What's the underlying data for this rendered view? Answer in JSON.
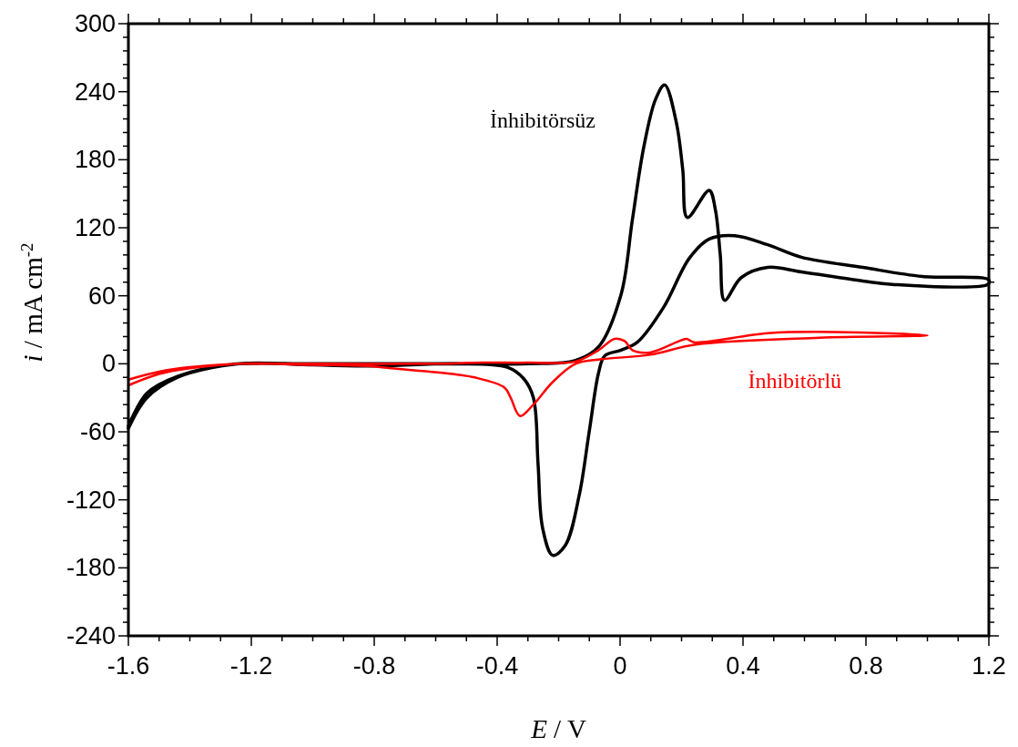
{
  "chart_data": {
    "type": "line",
    "xlabel": "E / V",
    "ylabel": "i / mA cm$^{-2}$",
    "xlim": [
      -1.6,
      1.2
    ],
    "xticks": [
      -1.6,
      {
        "value": -1.5,
        "label": null
      },
      {
        "value": -1.4,
        "label": null
      },
      {
        "value": -1.3,
        "label": null
      },
      -1.2,
      {
        "value": -1.1,
        "label": null
      },
      {
        "value": -1.0,
        "label": null
      },
      {
        "value": -0.9,
        "label": null
      },
      -0.8,
      {
        "value": -0.7,
        "label": null
      },
      {
        "value": -0.6,
        "label": null
      },
      {
        "value": -0.5,
        "label": null
      },
      -0.4,
      {
        "value": -0.3,
        "label": null
      },
      {
        "value": -0.2,
        "label": null
      },
      {
        "value": -0.1,
        "label": null
      },
      0,
      {
        "value": 0.1,
        "label": null
      },
      {
        "value": 0.2,
        "label": null
      },
      {
        "value": 0.3,
        "label": null
      },
      0.4,
      {
        "value": 0.5,
        "label": null
      },
      {
        "value": 0.6,
        "label": null
      },
      {
        "value": 0.7,
        "label": null
      },
      0.8,
      {
        "value": 0.9,
        "label": null
      },
      {
        "value": 1.0,
        "label": null
      },
      {
        "value": 1.1,
        "label": null
      },
      1.2
    ],
    "ylim": [
      -240,
      300
    ],
    "yticks": [
      -240,
      {
        "value": -228,
        "label": null
      },
      {
        "value": -216,
        "label": null
      },
      {
        "value": -204,
        "label": null
      },
      {
        "value": -192,
        "label": null
      },
      -180,
      {
        "value": -168,
        "label": null
      },
      {
        "value": -156,
        "label": null
      },
      {
        "value": -144,
        "label": null
      },
      {
        "value": -132,
        "label": null
      },
      -120,
      {
        "value": -108,
        "label": null
      },
      {
        "value": -96,
        "label": null
      },
      {
        "value": -84,
        "label": null
      },
      {
        "value": -72,
        "label": null
      },
      -60,
      {
        "value": -48,
        "label": null
      },
      {
        "value": -36,
        "label": null
      },
      {
        "value": -24,
        "label": null
      },
      {
        "value": -12,
        "label": null
      },
      0,
      {
        "value": 12,
        "label": null
      },
      {
        "value": 24,
        "label": null
      },
      {
        "value": 36,
        "label": null
      },
      {
        "value": 48,
        "label": null
      },
      60,
      {
        "value": 72,
        "label": null
      },
      {
        "value": 84,
        "label": null
      },
      {
        "value": 96,
        "label": null
      },
      {
        "value": 108,
        "label": null
      },
      120,
      {
        "value": 132,
        "label": null
      },
      {
        "value": 144,
        "label": null
      },
      {
        "value": 156,
        "label": null
      },
      {
        "value": 168,
        "label": null
      },
      180,
      {
        "value": 192,
        "label": null
      },
      {
        "value": 204,
        "label": null
      },
      {
        "value": 216,
        "label": null
      },
      {
        "value": 228,
        "label": null
      },
      240,
      {
        "value": 252,
        "label": null
      },
      {
        "value": 264,
        "label": null
      },
      {
        "value": 276,
        "label": null
      },
      {
        "value": 288,
        "label": null
      },
      300
    ],
    "grid": false,
    "marker": "none",
    "line_style": "solid",
    "series": [
      {
        "name": "İnhibitörsüz",
        "color": "#000000",
        "x": [
          -1.6,
          -1.54,
          -1.44,
          -1.32,
          -1.24,
          -1.0,
          -0.6,
          -0.3,
          -0.145,
          -0.07,
          0.003,
          0.04,
          0.077,
          0.115,
          0.145,
          0.183,
          0.204,
          0.219,
          0.29,
          0.31,
          0.326,
          0.34,
          0.394,
          0.48,
          0.59,
          0.79,
          0.886,
          1.197,
          1.2,
          0.984,
          0.79,
          0.59,
          0.48,
          0.373,
          0.29,
          0.225,
          0.142,
          0.056,
          0.003,
          -0.05,
          -0.07,
          -0.1,
          -0.133,
          -0.178,
          -0.219,
          -0.252,
          -0.267,
          -0.282,
          -0.314,
          -0.367,
          -0.536,
          -0.8,
          -1.0,
          -1.24,
          -1.44,
          -1.54,
          -1.6
        ],
        "values": [
          -57,
          -30,
          -12,
          -3,
          0,
          0,
          0,
          0,
          3,
          15,
          61,
          127,
          191,
          233,
          246,
          213,
          171,
          129,
          153,
          136,
          96,
          56,
          76,
          85,
          81,
          73,
          70,
          70,
          74,
          77,
          85,
          94,
          105,
          113,
          110,
          93,
          50,
          19,
          12,
          7,
          -8,
          -59,
          -116,
          -160,
          -169,
          -145,
          -88,
          -30,
          -13,
          -3,
          0,
          -2,
          -1,
          0,
          -11,
          -26,
          -55
        ]
      },
      {
        "name": "İnhibitörlü",
        "color": "#ff0000",
        "x": [
          -1.6,
          -1.5,
          -1.4,
          -1.24,
          -1.0,
          -0.6,
          -0.45,
          -0.3,
          -0.145,
          -0.07,
          -0.018,
          0.015,
          0.04,
          0.098,
          0.184,
          0.216,
          0.24,
          0.48,
          0.7,
          1.0,
          0.649,
          0.246,
          0.098,
          -0.06,
          -0.145,
          -0.219,
          -0.282,
          -0.326,
          -0.356,
          -0.376,
          -0.474,
          -0.545,
          -0.745,
          -0.82,
          -1.0,
          -1.24,
          -1.4,
          -1.5,
          -1.6
        ],
        "values": [
          -14,
          -7,
          -3,
          0,
          0,
          0,
          1,
          1,
          2,
          12,
          22,
          20,
          12,
          10,
          19,
          22,
          19,
          27,
          28,
          25,
          23,
          17,
          8,
          4,
          0,
          -16,
          -36,
          -46,
          -30,
          -21,
          -12,
          -9,
          -4,
          -2,
          -1,
          0,
          -4,
          -9,
          -19
        ]
      }
    ]
  }
}
